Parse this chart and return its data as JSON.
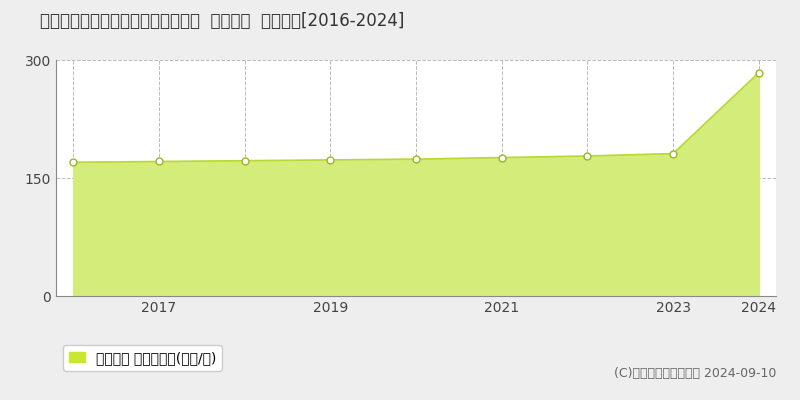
{
  "title": "兵庫県尼崎市潮江１丁目８１４番外  地価公示  地価推移[2016-2024]",
  "years": [
    2016,
    2017,
    2018,
    2019,
    2020,
    2021,
    2022,
    2023,
    2024
  ],
  "values": [
    170,
    171,
    172,
    173,
    174,
    176,
    178,
    181,
    284
  ],
  "ylim": [
    0,
    300
  ],
  "yticks": [
    0,
    150,
    300
  ],
  "xticks": [
    2017,
    2019,
    2021,
    2023,
    2024
  ],
  "grid_years": [
    2016,
    2017,
    2018,
    2019,
    2020,
    2021,
    2022,
    2023,
    2024
  ],
  "fill_color": "#d4ed7a",
  "line_color": "#b8d832",
  "marker_face_color": "#ffffff",
  "marker_edge_color": "#9ab820",
  "grid_color": "#bbbbbb",
  "background_color": "#eeeeee",
  "plot_bg_color": "#ffffff",
  "legend_label": "地価公示 平均坪単価(万円/坪)",
  "legend_color": "#c8e632",
  "copyright_text": "(C)土地価格ドットコム 2024-09-10",
  "title_fontsize": 12,
  "axis_fontsize": 10,
  "legend_fontsize": 10,
  "copyright_fontsize": 9
}
